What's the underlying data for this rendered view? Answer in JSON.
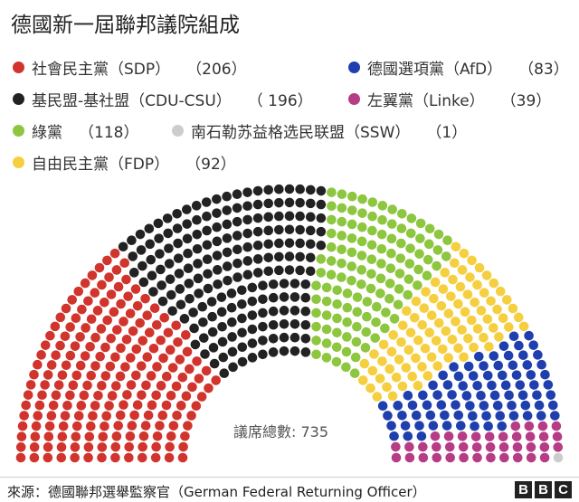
{
  "title": "德國新一屆聯邦議院組成",
  "chart_data": {
    "type": "parliament",
    "title": "德國新一屆聯邦議院組成",
    "total_label": "議席總數: 735",
    "total_seats": 735,
    "parties": [
      {
        "name": "社會民主黨（SDP）",
        "seats": 206,
        "color": "#d0342c"
      },
      {
        "name": "基民盟-基社盟（CDU-CSU）",
        "seats": 196,
        "color": "#222222"
      },
      {
        "name": "綠黨",
        "seats": 118,
        "color": "#8dc63f"
      },
      {
        "name": "自由民主黨（FDP）",
        "seats": 92,
        "color": "#f5cf3f"
      },
      {
        "name": "德國選項黨（AfD）",
        "seats": 83,
        "color": "#1f3fae"
      },
      {
        "name": "左翼黨（Linke）",
        "seats": 39,
        "color": "#b63c86"
      },
      {
        "name": "南石勒苏益格选民联盟（SSW）",
        "seats": 1,
        "color": "#cccccc"
      }
    ],
    "legend": [
      {
        "label": "社會民主黨（SDP）",
        "count": "（206）",
        "color": "#d0342c"
      },
      {
        "label": "德國選項黨（AfD）",
        "count": "（83）",
        "color": "#1f3fae"
      },
      {
        "label": "基民盟-基社盟（CDU-CSU）",
        "count": "（ 196）",
        "color": "#222222"
      },
      {
        "label": "左翼黨（Linke）",
        "count": "（39）",
        "color": "#b63c86"
      },
      {
        "label": "綠黨",
        "count": "（118）",
        "color": "#8dc63f"
      },
      {
        "label": "南石勒苏益格选民联盟（SSW）",
        "count": "（1）",
        "color": "#cccccc"
      },
      {
        "label": "自由民主黨（FDP）",
        "count": "（92）",
        "color": "#f5cf3f"
      }
    ]
  },
  "footer": {
    "source": "來源：德國聯邦選舉監察官（German Federal Returning Officer）",
    "logo_letters": [
      "B",
      "B",
      "C"
    ]
  }
}
